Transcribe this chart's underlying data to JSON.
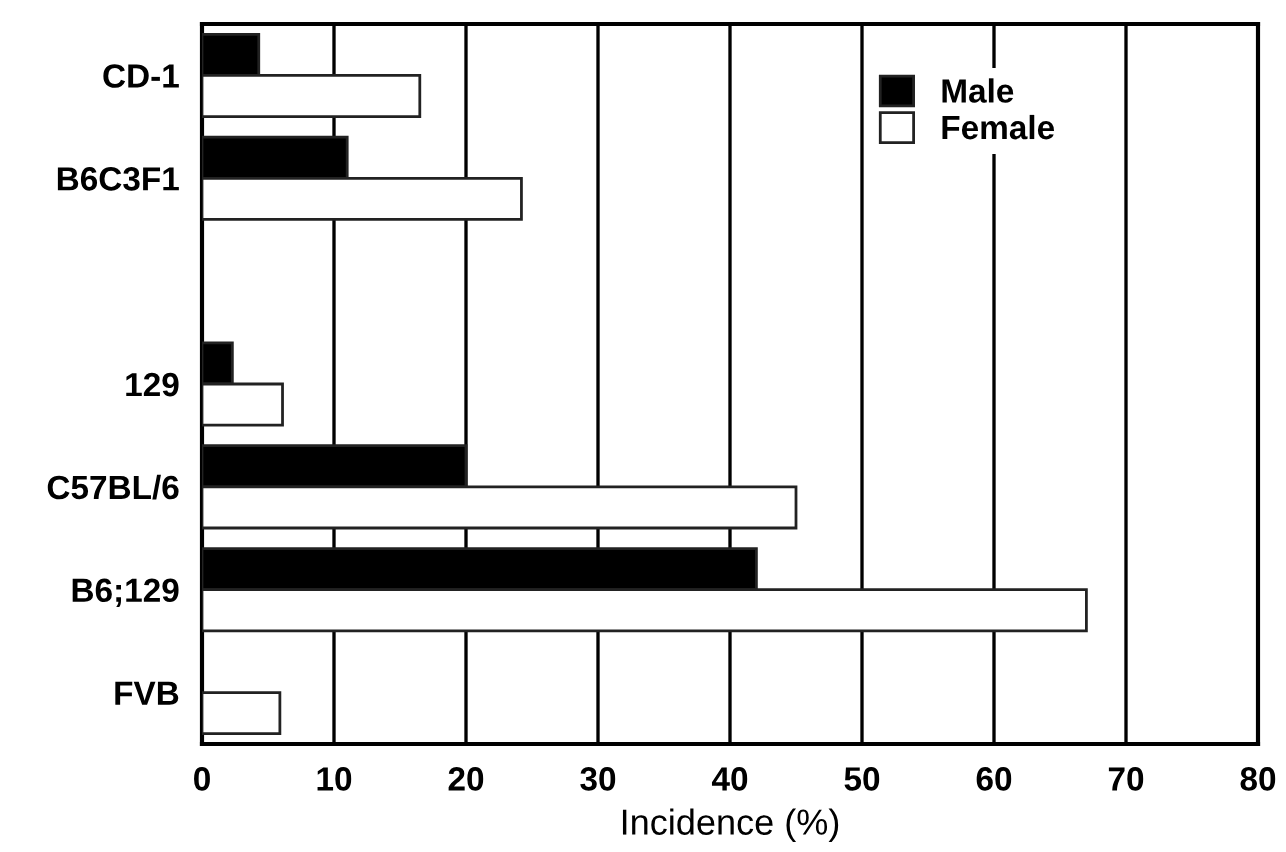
{
  "chart_data": {
    "type": "bar",
    "orientation": "horizontal",
    "xlabel": "Incidence (%)",
    "categories": [
      "CD-1",
      "B6C3F1",
      null,
      "129",
      "C57BL/6",
      "B6;129",
      "FVB"
    ],
    "series": [
      {
        "name": "Male",
        "color": "#000000",
        "values": [
          4.3,
          11.0,
          null,
          2.3,
          20.0,
          42.0,
          null
        ]
      },
      {
        "name": "Female",
        "color": "#ffffff",
        "values": [
          16.5,
          24.2,
          null,
          6.1,
          45.0,
          67.0,
          5.9
        ]
      }
    ],
    "xlim": [
      0,
      80
    ],
    "xticks": [
      0,
      10,
      20,
      30,
      40,
      50,
      60,
      70,
      80
    ],
    "grid": "x",
    "legend": "top right"
  }
}
